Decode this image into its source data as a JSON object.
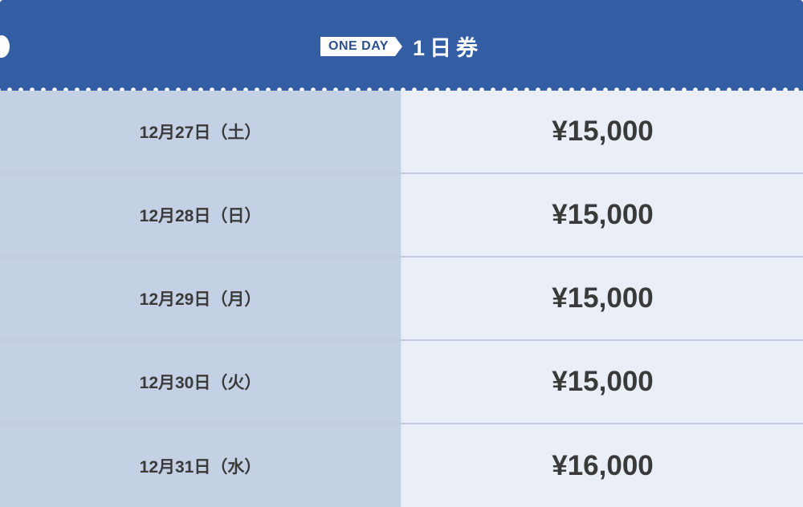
{
  "header": {
    "badge": "ONE DAY",
    "title": "1日券",
    "color": "#345ea3"
  },
  "rows": [
    {
      "date": "12月27日（土）",
      "price": "¥15,000"
    },
    {
      "date": "12月28日（日）",
      "price": "¥15,000"
    },
    {
      "date": "12月29日（月）",
      "price": "¥15,000"
    },
    {
      "date": "12月30日（火）",
      "price": "¥15,000"
    },
    {
      "date": "12月31日（水）",
      "price": "¥16,000"
    }
  ]
}
